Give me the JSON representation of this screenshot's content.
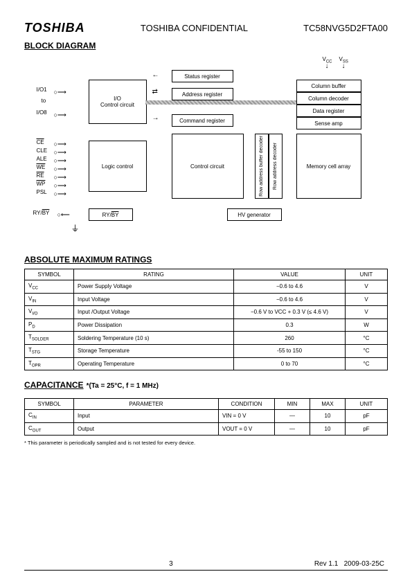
{
  "header": {
    "logo": "TOSHIBA",
    "confidential": "TOSHIBA  CONFIDENTIAL",
    "part": "TC58NVG5D2FTA00"
  },
  "sections": {
    "block": "BLOCK DIAGRAM",
    "ratings": "ABSOLUTE MAXIMUM RATINGS",
    "cap": "CAPACITANCE",
    "cap_cond": "*(Ta = 25°C, f = 1 MHz)"
  },
  "diagram": {
    "blocks": {
      "status": "Status register",
      "address": "Address register",
      "command": "Command register",
      "io": "I/O\nControl circuit",
      "logic": "Logic control",
      "control": "Control circuit",
      "hv": "HV generator",
      "colbuf": "Column buffer",
      "coldec": "Column decoder",
      "datareg": "Data register",
      "sense": "Sense amp",
      "memory": "Memory cell array",
      "rowbuf": "Row address buffer\ndecoder",
      "rowdec": "Row address decoder",
      "ryby": "RY/BY"
    },
    "pins": {
      "io1": "I/O1",
      "to": "to",
      "io8": "I/O8",
      "ce": "CE",
      "cle": "CLE",
      "ale": "ALE",
      "we": "WE",
      "re": "RE",
      "wp": "WP",
      "psl": "PSL",
      "ryby": "RY/BY",
      "vcc": "V",
      "vss": "V",
      "cc": "CC",
      "ss": "SS"
    }
  },
  "ratings": {
    "headers": [
      "SYMBOL",
      "RATING",
      "VALUE",
      "UNIT"
    ],
    "rows": [
      {
        "sym": "V",
        "sub": "CC",
        "rating": "Power Supply Voltage",
        "val": "−0.6 to 4.6",
        "unit": "V"
      },
      {
        "sym": "V",
        "sub": "IN",
        "rating": "Input Voltage",
        "val": "−0.6 to 4.6",
        "unit": "V"
      },
      {
        "sym": "V",
        "sub": "I/O",
        "rating": "Input /Output Voltage",
        "val": "−0.6 V to VCC + 0.3 V (≤ 4.6 V)",
        "unit": "V"
      },
      {
        "sym": "P",
        "sub": "D",
        "rating": "Power Dissipation",
        "val": "0.3",
        "unit": "W"
      },
      {
        "sym": "T",
        "sub": "SOLDER",
        "rating": "Soldering Temperature (10 s)",
        "val": "260",
        "unit": "°C"
      },
      {
        "sym": "T",
        "sub": "STG",
        "rating": "Storage Temperature",
        "val": "-55 to 150",
        "unit": "°C"
      },
      {
        "sym": "T",
        "sub": "OPR",
        "rating": "Operating Temperature",
        "val": "0 to 70",
        "unit": "°C"
      }
    ]
  },
  "cap": {
    "headers": [
      "SYMBOL",
      "PARAMETER",
      "CONDITION",
      "MIN",
      "MAX",
      "UNIT"
    ],
    "rows": [
      {
        "sym": "C",
        "sub": "IN",
        "param": "Input",
        "cond": "VIN = 0 V",
        "min": "—",
        "max": "10",
        "unit": "pF"
      },
      {
        "sym": "C",
        "sub": "OUT",
        "param": "Output",
        "cond": "VOUT = 0 V",
        "min": "—",
        "max": "10",
        "unit": "pF"
      }
    ]
  },
  "footnote": "*    This parameter is periodically sampled and is not tested for every device.",
  "footer": {
    "page": "3",
    "rev": "Rev 1.1",
    "date": "2009-03-25C"
  }
}
